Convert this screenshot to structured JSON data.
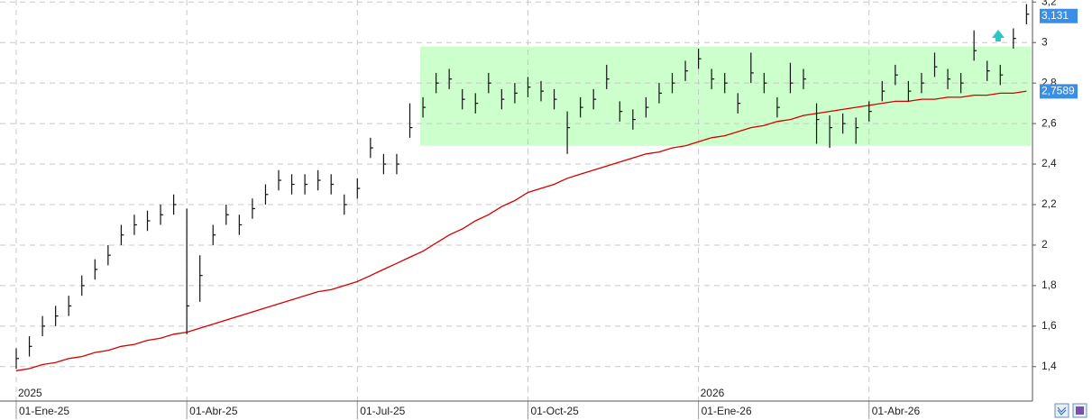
{
  "chart_data": {
    "type": "ohlc",
    "categories": [
      "01-Ene-25",
      null,
      null,
      null,
      null,
      null,
      null,
      null,
      null,
      null,
      null,
      null,
      null,
      "01-Abr-25",
      null,
      null,
      null,
      null,
      null,
      null,
      null,
      null,
      null,
      null,
      null,
      null,
      "01-Jul-25",
      null,
      null,
      null,
      null,
      null,
      null,
      null,
      null,
      null,
      null,
      null,
      null,
      "01-Oct-25",
      null,
      null,
      null,
      null,
      null,
      null,
      null,
      null,
      null,
      null,
      null,
      null,
      "01-Ene-26",
      null,
      null,
      null,
      null,
      null,
      null,
      null,
      null,
      null,
      null,
      null,
      null,
      "01-Abr-26",
      null,
      null,
      null,
      null,
      null,
      null,
      null,
      null,
      null,
      null,
      null,
      null
    ],
    "year_labels": [
      {
        "index": 0,
        "label": "2025"
      },
      {
        "index": 52,
        "label": "2026"
      }
    ],
    "high": [
      1.49,
      1.55,
      1.65,
      1.7,
      1.75,
      1.85,
      1.93,
      2.0,
      2.1,
      2.15,
      2.17,
      2.2,
      2.25,
      2.18,
      1.95,
      2.1,
      2.2,
      2.15,
      2.23,
      2.3,
      2.37,
      2.35,
      2.35,
      2.37,
      2.35,
      2.25,
      2.33,
      2.53,
      2.45,
      2.45,
      2.7,
      2.73,
      2.85,
      2.87,
      2.77,
      2.75,
      2.85,
      2.77,
      2.8,
      2.83,
      2.81,
      2.77,
      2.66,
      2.73,
      2.77,
      2.89,
      2.71,
      2.67,
      2.73,
      2.8,
      2.85,
      2.91,
      2.97,
      2.87,
      2.85,
      2.75,
      2.95,
      2.85,
      2.73,
      2.9,
      2.87,
      2.7,
      2.64,
      2.65,
      2.63,
      2.71,
      2.81,
      2.89,
      2.81,
      2.85,
      2.95,
      2.87,
      2.85,
      3.06,
      2.91,
      2.89,
      3.07,
      3.19
    ],
    "low": [
      1.39,
      1.45,
      1.55,
      1.6,
      1.65,
      1.75,
      1.83,
      1.9,
      2.0,
      2.05,
      2.07,
      2.1,
      2.15,
      1.56,
      1.72,
      2.0,
      2.1,
      2.05,
      2.13,
      2.2,
      2.27,
      2.25,
      2.25,
      2.27,
      2.25,
      2.15,
      2.23,
      2.43,
      2.35,
      2.35,
      2.53,
      2.63,
      2.75,
      2.77,
      2.67,
      2.65,
      2.75,
      2.67,
      2.7,
      2.73,
      2.71,
      2.67,
      2.45,
      2.63,
      2.67,
      2.77,
      2.61,
      2.57,
      2.63,
      2.7,
      2.75,
      2.81,
      2.87,
      2.77,
      2.75,
      2.65,
      2.8,
      2.75,
      2.63,
      2.75,
      2.77,
      2.5,
      2.48,
      2.55,
      2.5,
      2.61,
      2.71,
      2.79,
      2.71,
      2.75,
      2.83,
      2.77,
      2.75,
      2.91,
      2.81,
      2.79,
      2.97,
      3.09
    ],
    "close": [
      1.44,
      1.5,
      1.6,
      1.65,
      1.7,
      1.8,
      1.88,
      1.95,
      2.05,
      2.1,
      2.12,
      2.15,
      2.2,
      1.7,
      1.85,
      2.05,
      2.15,
      2.1,
      2.18,
      2.25,
      2.32,
      2.3,
      2.3,
      2.32,
      2.3,
      2.2,
      2.28,
      2.48,
      2.4,
      2.4,
      2.58,
      2.68,
      2.8,
      2.82,
      2.72,
      2.7,
      2.8,
      2.72,
      2.75,
      2.78,
      2.76,
      2.72,
      2.58,
      2.68,
      2.72,
      2.82,
      2.66,
      2.62,
      2.68,
      2.75,
      2.8,
      2.86,
      2.92,
      2.82,
      2.8,
      2.7,
      2.85,
      2.8,
      2.68,
      2.8,
      2.82,
      2.62,
      2.58,
      2.6,
      2.58,
      2.66,
      2.76,
      2.84,
      2.76,
      2.8,
      2.88,
      2.82,
      2.8,
      2.96,
      2.86,
      2.84,
      3.02,
      3.14
    ],
    "bar_color": "#111111",
    "ma": {
      "color": "#d40000",
      "values": [
        1.38,
        1.39,
        1.41,
        1.42,
        1.44,
        1.45,
        1.47,
        1.48,
        1.5,
        1.51,
        1.53,
        1.54,
        1.56,
        1.57,
        1.59,
        1.61,
        1.63,
        1.65,
        1.67,
        1.69,
        1.71,
        1.73,
        1.75,
        1.77,
        1.78,
        1.8,
        1.82,
        1.85,
        1.88,
        1.91,
        1.94,
        1.97,
        2.01,
        2.05,
        2.08,
        2.12,
        2.15,
        2.19,
        2.22,
        2.26,
        2.28,
        2.3,
        2.33,
        2.35,
        2.37,
        2.39,
        2.41,
        2.43,
        2.45,
        2.46,
        2.48,
        2.49,
        2.51,
        2.53,
        2.54,
        2.56,
        2.58,
        2.59,
        2.61,
        2.62,
        2.64,
        2.65,
        2.66,
        2.67,
        2.68,
        2.69,
        2.7,
        2.71,
        2.71,
        2.72,
        2.72,
        2.73,
        2.73,
        2.74,
        2.74,
        2.75,
        2.75,
        2.76
      ]
    },
    "price_tag": {
      "value": 3.131,
      "label": "3,131"
    },
    "ma_tag": {
      "value": 2.7589,
      "label": "2,7589"
    },
    "highlight": {
      "from": 31,
      "to": 77,
      "low": 2.49,
      "high": 2.98,
      "color": "#ccffcc"
    },
    "ylim": [
      1.23,
      3.21
    ],
    "yticks": [
      {
        "value": 1.4,
        "label": "1,4"
      },
      {
        "value": 1.6,
        "label": "1,6"
      },
      {
        "value": 1.8,
        "label": "1,8"
      },
      2,
      {
        "value": 2.2,
        "label": "2,2"
      },
      {
        "value": 2.4,
        "label": "2,4"
      },
      {
        "value": 2.6,
        "label": "2,6"
      },
      {
        "value": 2.8,
        "label": "2,8"
      },
      3,
      {
        "value": 3.2,
        "label": "3,2"
      }
    ],
    "grid": true
  }
}
